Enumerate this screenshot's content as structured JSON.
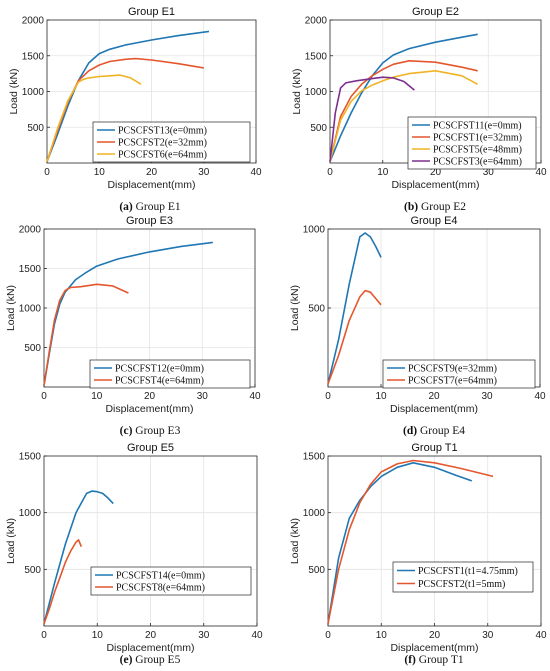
{
  "chart_data": [
    {
      "type": "line",
      "title": "Group E1",
      "xlabel": "Displacement(mm)",
      "ylabel": "Load (kN)",
      "xlim": [
        0,
        40
      ],
      "ylim": [
        0,
        2000
      ],
      "xticks": [
        0,
        10,
        20,
        30,
        40
      ],
      "yticks": [
        500,
        1000,
        1500,
        2000
      ],
      "grid": true,
      "legend_position": "bottom-right",
      "caption": {
        "tag": "(a)",
        "text": "Group E1"
      },
      "series": [
        {
          "name": "PCSCFST13(e=0mm)",
          "color": "#1f77b4",
          "x": [
            0,
            2,
            4,
            6,
            8,
            10,
            12,
            15,
            20,
            25,
            31
          ],
          "y": [
            20,
            400,
            800,
            1150,
            1400,
            1530,
            1590,
            1650,
            1720,
            1780,
            1840
          ]
        },
        {
          "name": "PCSCFST2(e=32mm)",
          "color": "#e4572e",
          "x": [
            0,
            2,
            4,
            6,
            8,
            10,
            12,
            15,
            17,
            20,
            25,
            30
          ],
          "y": [
            20,
            450,
            850,
            1150,
            1290,
            1370,
            1420,
            1450,
            1460,
            1440,
            1390,
            1330
          ]
        },
        {
          "name": "PCSCFST6(e=64mm)",
          "color": "#f0b323",
          "x": [
            0,
            2,
            4,
            6,
            7,
            8,
            10,
            12,
            14,
            16,
            18
          ],
          "y": [
            20,
            480,
            870,
            1130,
            1170,
            1190,
            1210,
            1220,
            1230,
            1190,
            1100
          ]
        }
      ]
    },
    {
      "type": "line",
      "title": "Group E2",
      "xlabel": "Displacement(mm)",
      "ylabel": "Load (kN)",
      "xlim": [
        0,
        40
      ],
      "ylim": [
        0,
        2000
      ],
      "xticks": [
        0,
        10,
        20,
        30,
        40
      ],
      "yticks": [
        500,
        1000,
        1500,
        2000
      ],
      "grid": true,
      "legend_position": "bottom-right",
      "caption": {
        "tag": "(b)",
        "text": "Group E2"
      },
      "series": [
        {
          "name": "PCSCFST11(e=0mm)",
          "color": "#1f77b4",
          "x": [
            0,
            2,
            4,
            6,
            8,
            10,
            12,
            15,
            20,
            25,
            28
          ],
          "y": [
            20,
            380,
            700,
            980,
            1220,
            1400,
            1510,
            1600,
            1690,
            1760,
            1800
          ]
        },
        {
          "name": "PCSCFST1(e=32mm)",
          "color": "#e4572e",
          "x": [
            0,
            2,
            4,
            6,
            8,
            10,
            12,
            15,
            20,
            25,
            28
          ],
          "y": [
            20,
            650,
            930,
            1100,
            1220,
            1310,
            1380,
            1430,
            1410,
            1340,
            1290
          ]
        },
        {
          "name": "PCSCFST5(e=48mm)",
          "color": "#f0b323",
          "x": [
            0,
            2,
            4,
            6,
            8,
            10,
            12,
            15,
            20,
            25,
            28
          ],
          "y": [
            20,
            600,
            860,
            1010,
            1090,
            1150,
            1200,
            1250,
            1290,
            1220,
            1100
          ]
        },
        {
          "name": "PCSCFST3(e=64mm)",
          "color": "#7e2f8e",
          "x": [
            0,
            1,
            2,
            3,
            5,
            8,
            10,
            12,
            14,
            16
          ],
          "y": [
            20,
            700,
            1050,
            1120,
            1150,
            1180,
            1200,
            1190,
            1140,
            1020
          ]
        }
      ]
    },
    {
      "type": "line",
      "title": "Group E3",
      "xlabel": "Displacement(mm)",
      "ylabel": "Load (kN)",
      "xlim": [
        0,
        40
      ],
      "ylim": [
        0,
        2000
      ],
      "xticks": [
        0,
        10,
        20,
        30,
        40
      ],
      "yticks": [
        500,
        1000,
        1500,
        2000
      ],
      "grid": true,
      "legend_position": "bottom-right",
      "caption": {
        "tag": "(c)",
        "text": "Group E3"
      },
      "series": [
        {
          "name": "PCSCFST12(e=0mm)",
          "color": "#1f77b4",
          "x": [
            0,
            1,
            2,
            3,
            4,
            6,
            8,
            10,
            14,
            20,
            26,
            32
          ],
          "y": [
            20,
            420,
            800,
            1050,
            1200,
            1360,
            1450,
            1530,
            1620,
            1710,
            1780,
            1830
          ]
        },
        {
          "name": "PCSCFST4(e=64mm)",
          "color": "#e4572e",
          "x": [
            0,
            1,
            2,
            3,
            4,
            5,
            7,
            10,
            13,
            16
          ],
          "y": [
            20,
            450,
            850,
            1100,
            1220,
            1260,
            1270,
            1300,
            1280,
            1190
          ]
        }
      ]
    },
    {
      "type": "line",
      "title": "Group E4",
      "xlabel": "Displacement(mm)",
      "ylabel": "Load (kN)",
      "xlim": [
        0,
        40
      ],
      "ylim": [
        0,
        1000
      ],
      "xticks": [
        0,
        10,
        20,
        30,
        40
      ],
      "yticks": [
        500,
        1000
      ],
      "grid": true,
      "legend_position": "bottom-right",
      "caption": {
        "tag": "(d)",
        "text": "Group E4"
      },
      "series": [
        {
          "name": "PCSCFST9(e=32mm)",
          "color": "#1f77b4",
          "x": [
            0,
            2,
            4,
            6,
            7,
            8,
            9,
            10
          ],
          "y": [
            20,
            300,
            650,
            950,
            975,
            950,
            890,
            820
          ]
        },
        {
          "name": "PCSCFST7(e=64mm)",
          "color": "#e4572e",
          "x": [
            0,
            2,
            4,
            6,
            7,
            8,
            9,
            10
          ],
          "y": [
            20,
            200,
            420,
            570,
            610,
            600,
            560,
            520
          ]
        }
      ]
    },
    {
      "type": "line",
      "title": "Group E5",
      "xlabel": "Displacement(mm)",
      "ylabel": "Load (kN)",
      "xlim": [
        0,
        40
      ],
      "ylim": [
        0,
        1500
      ],
      "xticks": [
        0,
        10,
        20,
        30,
        40
      ],
      "yticks": [
        500,
        1000,
        1500
      ],
      "grid": true,
      "legend_position": "bottom-right",
      "caption": {
        "tag": "(e)",
        "text": "Group E5"
      },
      "series": [
        {
          "name": "PCSCFST14(e=0mm)",
          "color": "#1f77b4",
          "x": [
            0,
            2,
            4,
            6,
            8,
            9,
            10,
            11,
            12,
            13
          ],
          "y": [
            20,
            380,
            720,
            1000,
            1170,
            1190,
            1185,
            1170,
            1130,
            1080
          ]
        },
        {
          "name": "PCSCFST8(e=64mm)",
          "color": "#e4572e",
          "x": [
            0,
            1,
            2,
            3,
            4,
            5,
            6,
            6.5,
            7
          ],
          "y": [
            20,
            150,
            300,
            430,
            560,
            660,
            740,
            760,
            700
          ]
        }
      ]
    },
    {
      "type": "line",
      "title": "Group T1",
      "xlabel": "Displacement(mm)",
      "ylabel": "Load (kN)",
      "xlim": [
        0,
        40
      ],
      "ylim": [
        0,
        1500
      ],
      "xticks": [
        0,
        10,
        20,
        30,
        40
      ],
      "yticks": [
        500,
        1000,
        1500
      ],
      "grid": true,
      "legend_position": "bottom-right",
      "caption": {
        "tag": "(f)",
        "text": "Group T1"
      },
      "series": [
        {
          "name": "PCSCFST1(t1=4.75mm)",
          "color": "#1f77b4",
          "x": [
            0,
            2,
            4,
            6,
            8,
            10,
            13,
            16,
            20,
            24,
            27
          ],
          "y": [
            20,
            600,
            950,
            1110,
            1230,
            1320,
            1400,
            1440,
            1400,
            1330,
            1280
          ]
        },
        {
          "name": "PCSCFST2(t1=5mm)",
          "color": "#e4572e",
          "x": [
            0,
            2,
            4,
            6,
            8,
            10,
            13,
            16,
            20,
            25,
            31
          ],
          "y": [
            20,
            500,
            850,
            1090,
            1250,
            1360,
            1430,
            1460,
            1440,
            1390,
            1320
          ]
        }
      ]
    }
  ]
}
